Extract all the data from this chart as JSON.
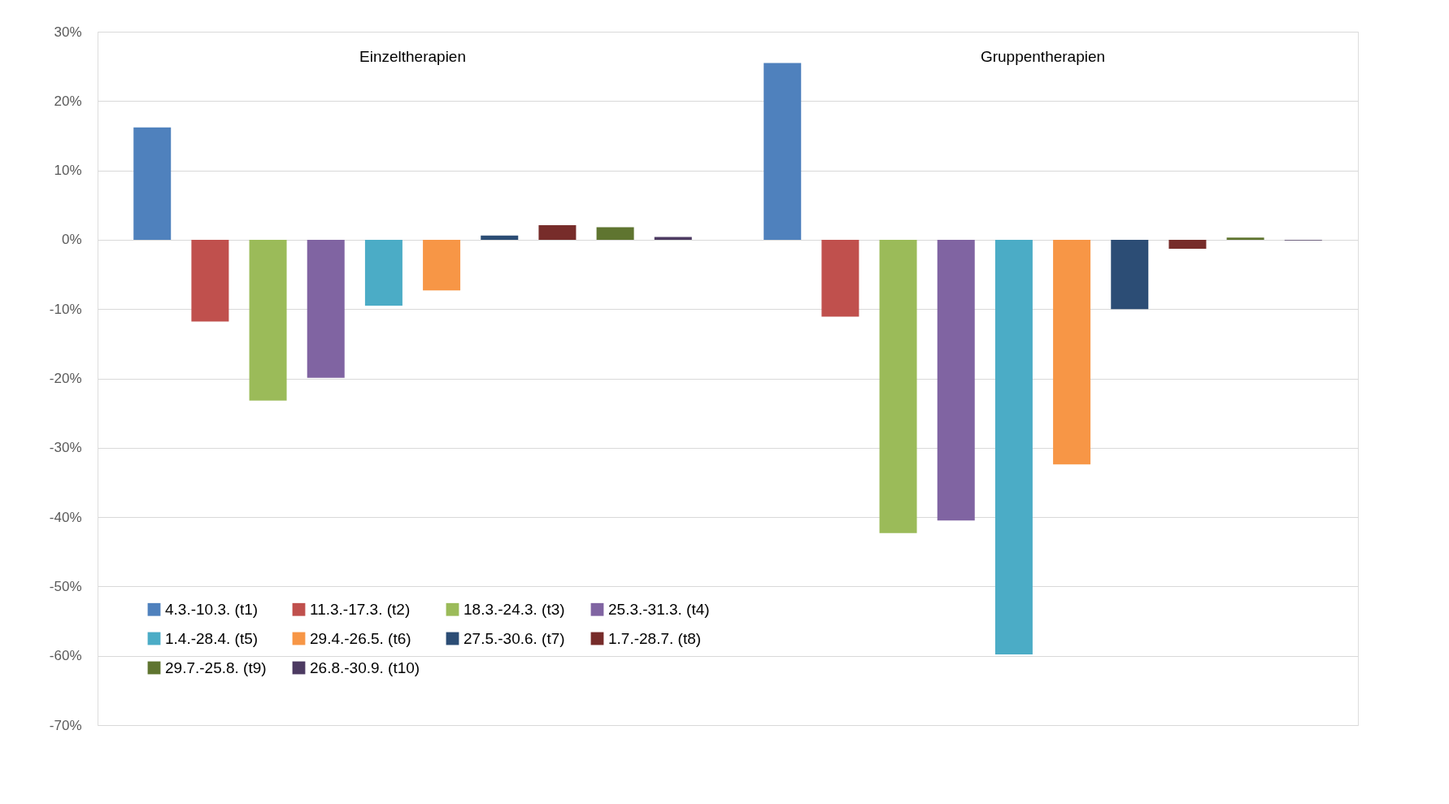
{
  "chart_data": {
    "type": "bar",
    "categories": [
      "Einzeltherapien",
      "Gruppentherapien"
    ],
    "series": [
      {
        "name": "4.3.-10.3. (t1)",
        "color": "#4f81bd",
        "values": [
          16.2,
          25.5
        ]
      },
      {
        "name": "11.3.-17.3. (t2)",
        "color": "#c0504d",
        "values": [
          -11.8,
          -11.1
        ]
      },
      {
        "name": "18.3.-24.3. (t3)",
        "color": "#9bbb59",
        "values": [
          -23.2,
          -42.3
        ]
      },
      {
        "name": "25.3.-31.3. (t4)",
        "color": "#8064a2",
        "values": [
          -19.9,
          -40.5
        ]
      },
      {
        "name": "1.4.-28.4. (t5)",
        "color": "#4bacc6",
        "values": [
          -9.5,
          -59.8
        ]
      },
      {
        "name": "29.4.-26.5. (t6)",
        "color": "#f79646",
        "values": [
          -7.3,
          -32.4
        ]
      },
      {
        "name": "27.5.-30.6. (t7)",
        "color": "#2c4d75",
        "values": [
          0.6,
          -10.0
        ]
      },
      {
        "name": "1.7.-28.7. (t8)",
        "color": "#772c2a",
        "values": [
          2.1,
          -1.3
        ]
      },
      {
        "name": "29.7.-25.8. (t9)",
        "color": "#5f7530",
        "values": [
          1.8,
          0.3
        ]
      },
      {
        "name": "26.8.-30.9. (t10)",
        "color": "#4d3b62",
        "values": [
          0.4,
          -0.1
        ]
      }
    ],
    "ylim": [
      -70,
      30
    ],
    "yticks": [
      {
        "value": -70,
        "label": "-70%"
      },
      {
        "value": -60,
        "label": "-60%"
      },
      {
        "value": -50,
        "label": "-50%"
      },
      {
        "value": -40,
        "label": "-40%"
      },
      {
        "value": -30,
        "label": "-30%"
      },
      {
        "value": -20,
        "label": "-20%"
      },
      {
        "value": -10,
        "label": "-10%"
      },
      {
        "value": 0,
        "label": "0%"
      },
      {
        "value": 10,
        "label": "10%"
      },
      {
        "value": 20,
        "label": "20%"
      },
      {
        "value": 30,
        "label": "30%"
      }
    ],
    "grid": "y",
    "legend": "bottom left"
  }
}
